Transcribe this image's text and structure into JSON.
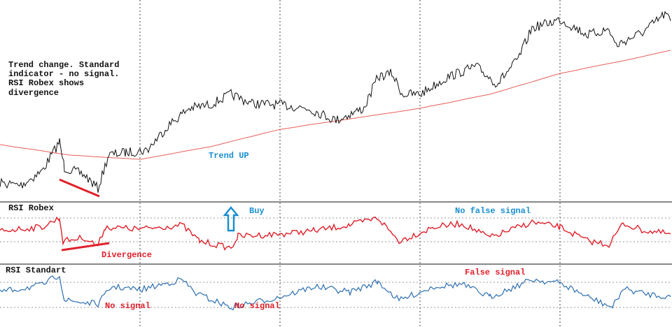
{
  "note_block": {
    "lines": [
      "Trend change. Standard",
      "indicator - no signal.",
      "RSI Robex shows",
      "divergence"
    ]
  },
  "main_panel": {
    "trend_label": "Trend UP"
  },
  "panels": [
    {
      "title": "RSI Robex",
      "annotations": [
        "Buy",
        "No false signal",
        "Divergence"
      ]
    },
    {
      "title": "RSI Standart",
      "annotations": [
        "False signal",
        "No signal",
        "No signal"
      ]
    }
  ]
}
